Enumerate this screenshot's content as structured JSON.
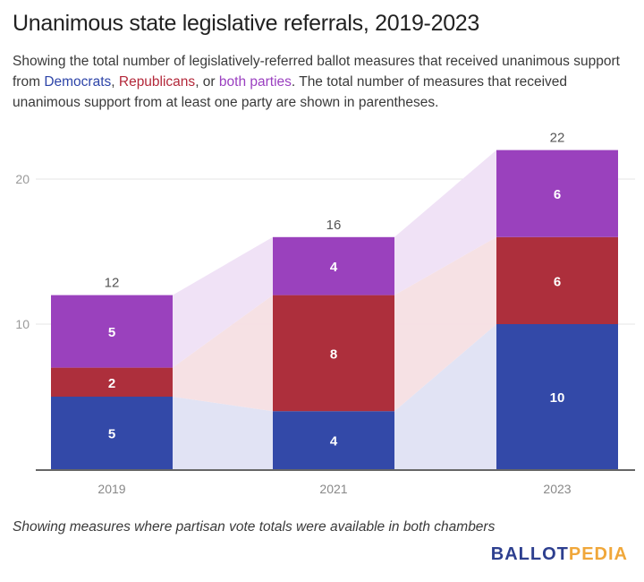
{
  "header": {
    "title": "Unanimous state legislative referrals, 2019-2023",
    "subtitle_parts": {
      "p1": "Showing the total number of legislatively-referred ballot measures that received unanimous support from ",
      "dem": "Democrats",
      "sep1": ", ",
      "rep": "Republicans",
      "sep2": ", or ",
      "both": "both parties",
      "p2": ". The total number of measures that received unanimous support from at least one party are shown in parentheses."
    }
  },
  "footer": {
    "note": "Showing measures where partisan vote totals were available in both chambers",
    "logo_part1": "BALLOT",
    "logo_part2": "PEDIA"
  },
  "colors": {
    "democrats": "#3349a8",
    "republicans": "#ad2f3c",
    "both": "#9a41bd",
    "dem_band": "#dfe2f3",
    "rep_band": "#f6dfe3",
    "both_band": "#efe0f5"
  },
  "chart_data": {
    "type": "bar",
    "stacked": true,
    "title": "Unanimous state legislative referrals, 2019-2023",
    "xlabel": "",
    "ylabel": "",
    "categories": [
      "2019",
      "2021",
      "2023"
    ],
    "series": [
      {
        "name": "Democrats",
        "values": [
          5,
          4,
          10
        ]
      },
      {
        "name": "Republicans",
        "values": [
          2,
          8,
          6
        ]
      },
      {
        "name": "Both parties",
        "values": [
          5,
          4,
          6
        ]
      }
    ],
    "totals": [
      12,
      16,
      22
    ],
    "ylim": [
      0,
      22
    ],
    "yticks": [
      10,
      20
    ],
    "grid": true,
    "legend": "inline-subtitle",
    "connecting_bands": true
  }
}
